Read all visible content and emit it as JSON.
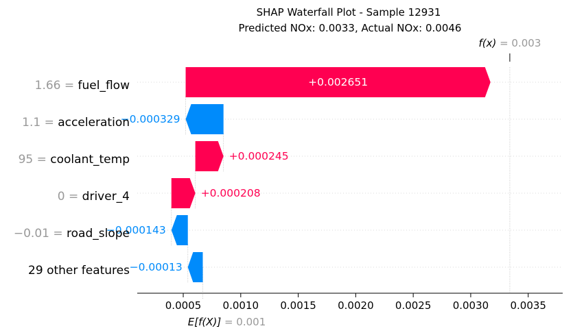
{
  "chart_data": {
    "type": "waterfall",
    "title_line1": "SHAP Waterfall Plot - Sample 12931",
    "title_line2": "Predicted NOx: 0.0033, Actual NOx: 0.0046",
    "base_value": 0.00067,
    "final_value": 0.00334,
    "fx_label": "f(x)",
    "fx_value_text": "= 0.003",
    "ex_label": "E[f(X)]",
    "ex_value_text": "= 0.001",
    "xlim": [
      0.0001,
      0.0038
    ],
    "ticks": [
      0.0005,
      0.001,
      0.0015,
      0.002,
      0.0025,
      0.003,
      0.0035
    ],
    "tick_labels": [
      "0.0005",
      "0.0010",
      "0.0015",
      "0.0020",
      "0.0025",
      "0.0030",
      "0.0035"
    ],
    "features": [
      {
        "name": "fuel_flow",
        "value_text": "1.66 =",
        "shap": 0.002651,
        "label": "+0.002651"
      },
      {
        "name": "acceleration",
        "value_text": "1.1 =",
        "shap": -0.000329,
        "label": "−0.000329"
      },
      {
        "name": "coolant_temp",
        "value_text": "95 =",
        "shap": 0.000245,
        "label": "+0.000245"
      },
      {
        "name": "driver_4",
        "value_text": "0 =",
        "shap": 0.000208,
        "label": "+0.000208"
      },
      {
        "name": "road_slope",
        "value_text": "−0.01 =",
        "shap": -0.000143,
        "label": "−0.000143"
      },
      {
        "name": "29 other features",
        "value_text": "",
        "shap": -0.00013,
        "label": "−0.00013"
      }
    ],
    "colors": {
      "positive": "#ff0051",
      "negative": "#008bfb"
    }
  }
}
